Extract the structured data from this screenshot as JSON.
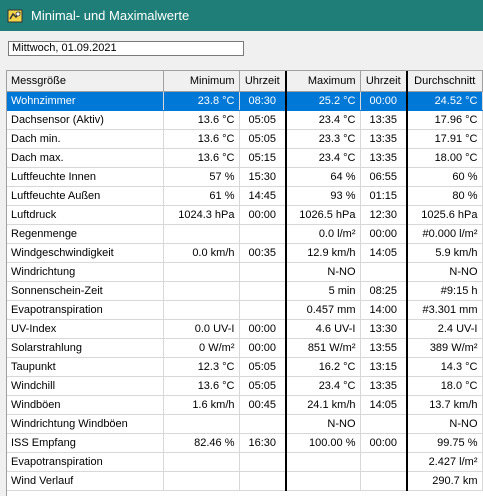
{
  "window": {
    "title": "Minimal- und Maximalwerte",
    "icon": "weather-app-icon"
  },
  "date_field": {
    "value": "Mittwoch, 01.09.2021"
  },
  "columns": [
    "Messgröße",
    "Minimum",
    "Uhrzeit",
    "Maximum",
    "Uhrzeit",
    "Durchschnitt"
  ],
  "selected_row": 0,
  "rows": [
    [
      "Wohnzimmer",
      "23.8 °C",
      "08:30",
      "25.2 °C",
      "00:00",
      "24.52 °C"
    ],
    [
      "Dachsensor (Aktiv)",
      "13.6 °C",
      "05:05",
      "23.4 °C",
      "13:35",
      "17.96 °C"
    ],
    [
      "Dach min.",
      "13.6 °C",
      "05:05",
      "23.3 °C",
      "13:35",
      "17.91 °C"
    ],
    [
      "Dach max.",
      "13.6 °C",
      "05:15",
      "23.4 °C",
      "13:35",
      "18.00 °C"
    ],
    [
      "Luftfeuchte Innen",
      "57 %",
      "15:30",
      "64 %",
      "06:55",
      "60 %"
    ],
    [
      "Luftfeuchte Außen",
      "61 %",
      "14:45",
      "93 %",
      "01:15",
      "80 %"
    ],
    [
      "Luftdruck",
      "1024.3 hPa",
      "00:00",
      "1026.5 hPa",
      "12:30",
      "1025.6 hPa"
    ],
    [
      "Regenmenge",
      "",
      "",
      "0.0 l/m²",
      "00:00",
      "#0.000 l/m²"
    ],
    [
      "Windgeschwindigkeit",
      "0.0 km/h",
      "00:35",
      "12.9 km/h",
      "14:05",
      "5.9 km/h"
    ],
    [
      "Windrichtung",
      "",
      "",
      "N-NO",
      "",
      "N-NO"
    ],
    [
      "Sonnenschein-Zeit",
      "",
      "",
      "5 min",
      "08:25",
      "#9:15 h"
    ],
    [
      "Evapotranspiration",
      "",
      "",
      "0.457 mm",
      "14:00",
      "#3.301 mm"
    ],
    [
      "UV-Index",
      "0.0 UV-I",
      "00:00",
      "4.6 UV-I",
      "13:30",
      "2.4 UV-I"
    ],
    [
      "Solarstrahlung",
      "0 W/m²",
      "00:00",
      "851 W/m²",
      "13:55",
      "389 W/m²"
    ],
    [
      "Taupunkt",
      "12.3 °C",
      "05:05",
      "16.2 °C",
      "13:15",
      "14.3 °C"
    ],
    [
      "Windchill",
      "13.6 °C",
      "05:05",
      "23.4 °C",
      "13:35",
      "18.0 °C"
    ],
    [
      "Windböen",
      "1.6 km/h",
      "00:45",
      "24.1 km/h",
      "14:05",
      "13.7 km/h"
    ],
    [
      "Windrichtung Windböen",
      "",
      "",
      "N-NO",
      "",
      "N-NO"
    ],
    [
      "ISS Empfang",
      "82.46 %",
      "16:30",
      "100.00 %",
      "00:00",
      "99.75 %"
    ],
    [
      "Evapotranspiration",
      "",
      "",
      "",
      "",
      "2.427 l/m²"
    ],
    [
      "Wind Verlauf",
      "",
      "",
      "",
      "",
      "290.7 km"
    ]
  ]
}
